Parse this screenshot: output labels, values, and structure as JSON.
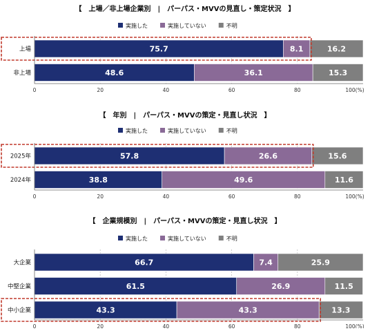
{
  "colors": {
    "implemented": "#1e2f73",
    "not_implemented": "#8a6a97",
    "unknown": "#7f7f7f",
    "highlight": "#c0392b",
    "grid": "#bfbfbf",
    "axis": "#666666",
    "text": "#222222"
  },
  "chart_data": [
    {
      "type": "bar",
      "orientation": "horizontal",
      "stacked": true,
      "title": "【　上場／非上場企業別　|　パーパス・MVVの見直し・策定状況　】",
      "legend": [
        "実施した",
        "実施していない",
        "不明"
      ],
      "legend_position": "top",
      "categories": [
        "上場",
        "非上場"
      ],
      "highlighted": [
        "上場"
      ],
      "series": [
        {
          "name": "実施した",
          "values": [
            75.7,
            48.6
          ]
        },
        {
          "name": "実施していない",
          "values": [
            8.1,
            36.1
          ]
        },
        {
          "name": "不明",
          "values": [
            16.2,
            15.3
          ]
        }
      ],
      "xlim": [
        0,
        100
      ],
      "xticks": [
        "0",
        "20",
        "40",
        "60",
        "80",
        "100(%)"
      ],
      "grid": true
    },
    {
      "type": "bar",
      "orientation": "horizontal",
      "stacked": true,
      "title": "【　年別　|　パーパス・MVVの策定・見直し状況　】",
      "legend": [
        "実施した",
        "実施していない",
        "不明"
      ],
      "legend_position": "top",
      "categories": [
        "2025年",
        "2024年"
      ],
      "highlighted": [
        "2025年"
      ],
      "series": [
        {
          "name": "実施した",
          "values": [
            57.8,
            38.8
          ]
        },
        {
          "name": "実施していない",
          "values": [
            26.6,
            49.6
          ]
        },
        {
          "name": "不明",
          "values": [
            15.6,
            11.6
          ]
        }
      ],
      "xlim": [
        0,
        100
      ],
      "xticks": [
        "0",
        "20",
        "40",
        "60",
        "80",
        "100(%)"
      ],
      "grid": true
    },
    {
      "type": "bar",
      "orientation": "horizontal",
      "stacked": true,
      "title": "【　企業規模別　|　パーパス・MVVの策定・見直し状況　】",
      "legend": [
        "実施した",
        "実施していない",
        "不明"
      ],
      "legend_position": "top",
      "categories": [
        "大企業",
        "中堅企業",
        "中小企業"
      ],
      "highlighted": [
        "中小企業"
      ],
      "series": [
        {
          "name": "実施した",
          "values": [
            66.7,
            61.5,
            43.3
          ]
        },
        {
          "name": "実施していない",
          "values": [
            7.4,
            26.9,
            43.3
          ]
        },
        {
          "name": "不明",
          "values": [
            25.9,
            11.5,
            13.3
          ]
        }
      ],
      "xlim": [
        0,
        100
      ],
      "xticks": [
        "0",
        "20",
        "40",
        "60",
        "80",
        "100(%)"
      ],
      "grid": true
    }
  ]
}
